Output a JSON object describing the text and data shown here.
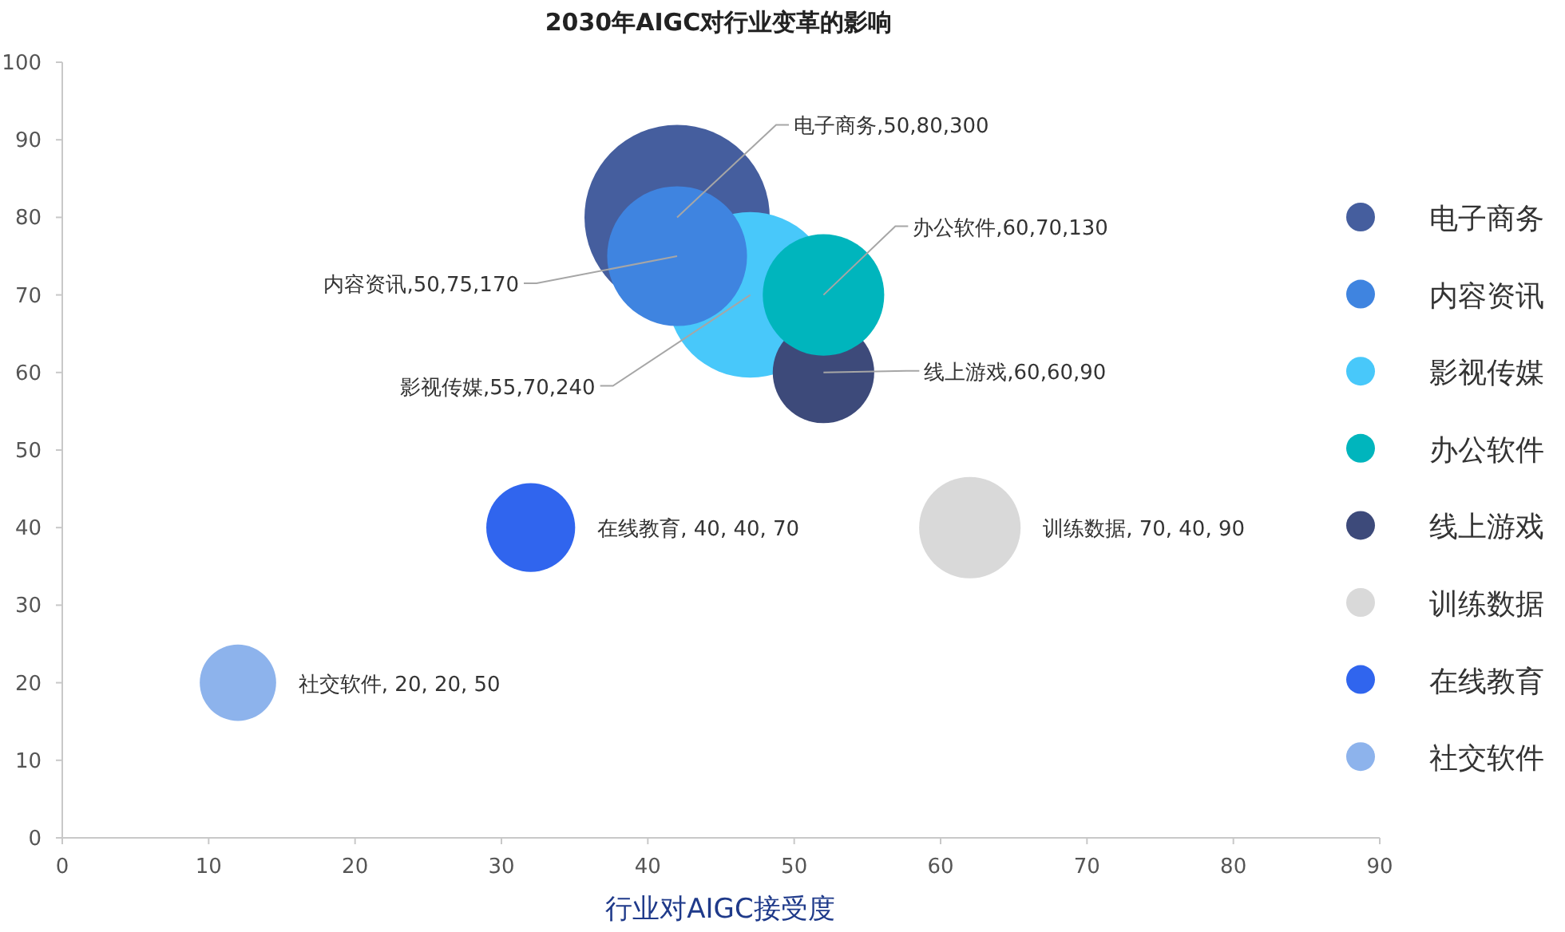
{
  "chart_data": {
    "type": "bubble",
    "title": "2030年AIGC对行业变革的影响",
    "xlabel": "行业对AIGC接受度",
    "xlim": [
      0,
      90
    ],
    "xticks": [
      0,
      10,
      20,
      30,
      40,
      50,
      60,
      70,
      80,
      90
    ],
    "ylim": [
      0,
      100
    ],
    "yticks": [
      0,
      10,
      20,
      30,
      40,
      50,
      60,
      70,
      80,
      90,
      100
    ],
    "legend": "right",
    "marker": "circle",
    "annotations": [
      {
        "text": "电子商务,50,80,300",
        "x": 42,
        "y": 80
      },
      {
        "text": "内容资讯,50,75,170",
        "x": 42,
        "y": 75
      },
      {
        "text": "影视传媒,55,70,240",
        "x": 47,
        "y": 70
      },
      {
        "text": "办公软件,60,70,130",
        "x": 52,
        "y": 70
      },
      {
        "text": "线上游戏,60,60,90",
        "x": 52,
        "y": 60
      },
      "训练数据, 70, 40, 90",
      "在线教育, 40, 40, 70",
      "社交软件, 20, 20, 50"
    ],
    "series": [
      {
        "name": "电子商务",
        "color": "#455e9e",
        "x": [
          42
        ],
        "values": [
          80
        ],
        "sizes": [
          1
        ]
      },
      {
        "name": "内容资讯",
        "color": "#3f84e0",
        "x": [
          42
        ],
        "values": [
          75
        ],
        "sizes": [
          0.57
        ]
      },
      {
        "name": "影视传媒",
        "color": "#48c8fa",
        "x": [
          47
        ],
        "values": [
          70
        ],
        "sizes": [
          0.8
        ]
      },
      {
        "name": "办公软件",
        "color": "#00b5bd",
        "x": [
          52
        ],
        "values": [
          70
        ],
        "sizes": [
          0.43
        ]
      },
      {
        "name": "线上游戏",
        "color": "#3d4a7a",
        "x": [
          52
        ],
        "values": [
          60
        ],
        "sizes": [
          0.3
        ]
      },
      {
        "name": "训练数据",
        "color": "#d9d9d9",
        "x": [
          62
        ],
        "values": [
          40
        ],
        "sizes": [
          0.3
        ]
      },
      {
        "name": "在线教育",
        "color": "#3065ee",
        "x": [
          32
        ],
        "values": [
          40
        ],
        "sizes": [
          0.23
        ]
      },
      {
        "name": "社交软件",
        "color": "#8db3ec",
        "x": [
          12
        ],
        "values": [
          20
        ],
        "sizes": [
          0.17
        ]
      }
    ]
  }
}
